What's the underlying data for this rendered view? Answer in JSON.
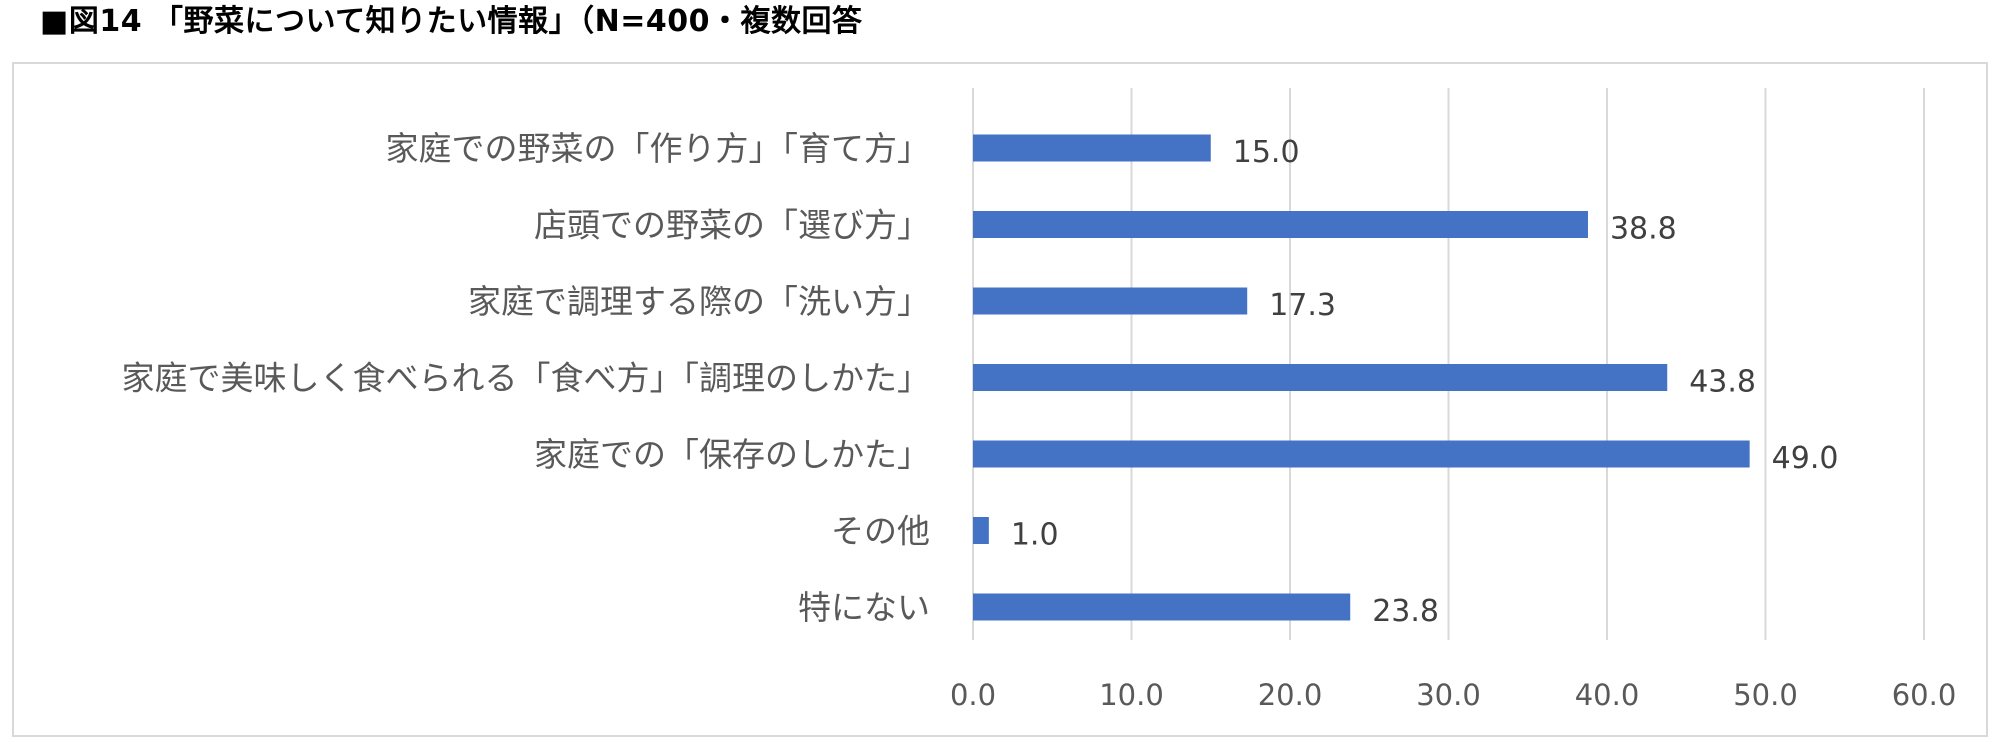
{
  "chart_data": {
    "type": "bar",
    "orientation": "horizontal",
    "title": "■図14 「野菜について知りたい情報」（N=400・複数回答",
    "categories": [
      "家庭での野菜の「作り方」「育て方」",
      "店頭での野菜の「選び方」",
      "家庭で調理する際の「洗い方」",
      "家庭で美味しく食べられる「食べ方」「調理のしかた」",
      "家庭での「保存のしかた」",
      "その他",
      "特にない"
    ],
    "values": [
      15.0,
      38.8,
      17.3,
      43.8,
      49.0,
      1.0,
      23.8
    ],
    "value_labels": [
      "15.0",
      "38.8",
      "17.3",
      "43.8",
      "49.0",
      "1.0",
      "23.8"
    ],
    "xlim": [
      0,
      60
    ],
    "x_ticks": [
      "0.0",
      "10.0",
      "20.0",
      "30.0",
      "40.0",
      "50.0",
      "60.0"
    ],
    "xlabel": "",
    "ylabel": "",
    "grid": "vertical",
    "legend": "none",
    "bar_color": "#4472c4",
    "grid_color": "#d9d9d9"
  }
}
